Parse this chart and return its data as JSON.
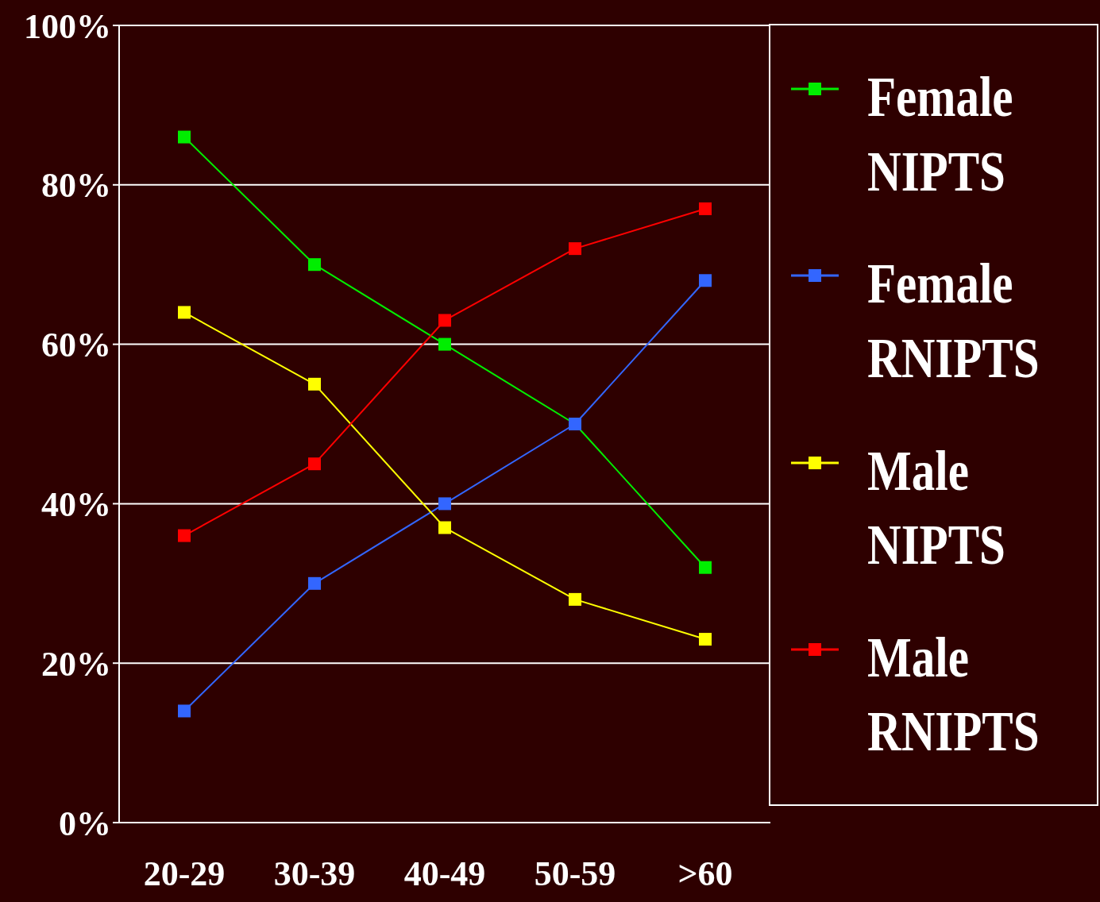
{
  "chart_data": {
    "type": "line",
    "categories": [
      "20-29",
      "30-39",
      "40-49",
      "50-59",
      ">60"
    ],
    "series": [
      {
        "name": "Female NIPTS",
        "color": "#00ee00",
        "values": [
          86,
          70,
          60,
          50,
          32
        ]
      },
      {
        "name": "Female RNIPTS",
        "color": "#3366ff",
        "values": [
          14,
          30,
          40,
          50,
          68
        ]
      },
      {
        "name": "Male  NIPTS",
        "color": "#ffff00",
        "values": [
          64,
          55,
          37,
          28,
          23
        ]
      },
      {
        "name": "Male RNIPTS",
        "color": "#ff0000",
        "values": [
          36,
          45,
          63,
          72,
          77
        ]
      }
    ],
    "ylim": [
      0,
      100
    ],
    "yticks": [
      {
        "value": 0,
        "label": "0%"
      },
      {
        "value": 20,
        "label": "20%"
      },
      {
        "value": 40,
        "label": "40%"
      },
      {
        "value": 60,
        "label": "60%"
      },
      {
        "value": 80,
        "label": "80%"
      },
      {
        "value": 100,
        "label": "100%"
      }
    ],
    "grid": "y",
    "legend": "right",
    "marker": "square",
    "line_style": "solid"
  }
}
